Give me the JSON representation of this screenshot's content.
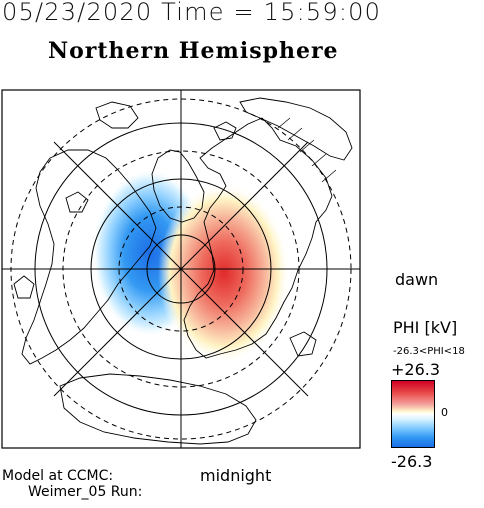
{
  "header": {
    "datetime": "05/23/2020 Time = 15:59:00"
  },
  "title": "Northern Hemisphere",
  "labels": {
    "dawn": "dawn",
    "midnight": "midnight"
  },
  "colorbar": {
    "title": "PHI [kV]",
    "range_text": "-26.3<PHI<18",
    "max": "+26.3",
    "zero": "0",
    "min": "-26.3",
    "colors": {
      "positive": "#d10024",
      "negative": "#1a6fe6",
      "neutral": "#ffffff"
    }
  },
  "credits": {
    "line1": "Model at CCMC:",
    "line2": "Weimer_05 Run:"
  }
}
